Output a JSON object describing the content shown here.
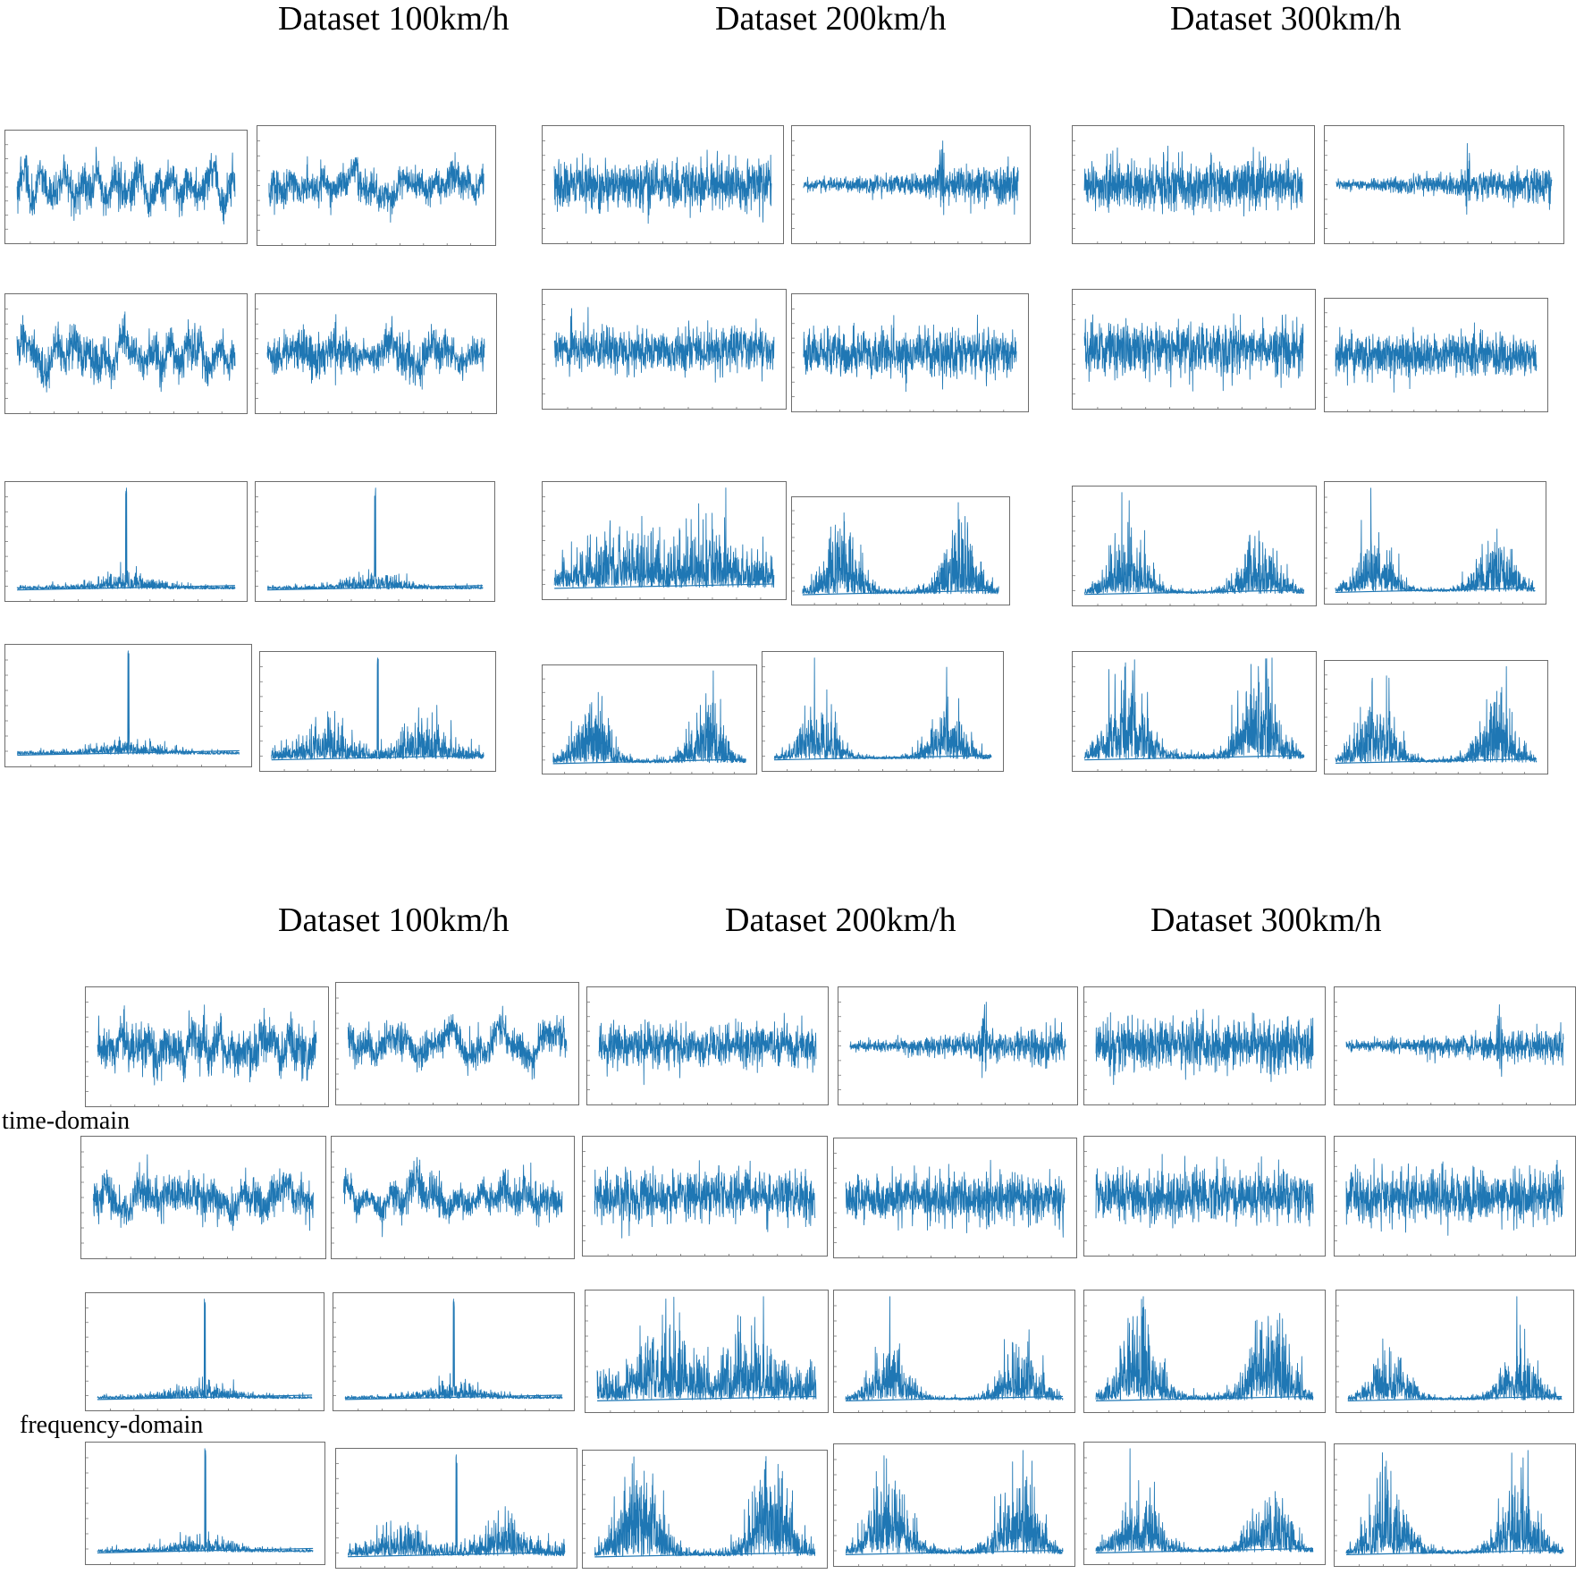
{
  "chart_data": [
    {
      "type": "line",
      "figure": "top",
      "column_titles": [
        "Dataset 100km/h",
        "Dataset 200km/h",
        "Dataset 300km/h"
      ],
      "row_labels": [],
      "line_color": "#1f77b4",
      "panels": [
        {
          "row": 0,
          "col": 0,
          "domain": "time",
          "kind": "lowfreq",
          "seed": 11,
          "amp": 0.8
        },
        {
          "row": 0,
          "col": 1,
          "domain": "time",
          "kind": "lowfreq",
          "seed": 12,
          "amp": 0.7
        },
        {
          "row": 0,
          "col": 2,
          "domain": "time",
          "kind": "noise",
          "seed": 13,
          "amp": 0.75
        },
        {
          "row": 0,
          "col": 3,
          "domain": "time",
          "kind": "narrow",
          "seed": 14,
          "amp": 0.85
        },
        {
          "row": 0,
          "col": 4,
          "domain": "time",
          "kind": "noise",
          "seed": 15,
          "amp": 0.75
        },
        {
          "row": 0,
          "col": 5,
          "domain": "time",
          "kind": "narrow",
          "seed": 16,
          "amp": 0.8
        },
        {
          "row": 1,
          "col": 0,
          "domain": "time",
          "kind": "lowfreq",
          "seed": 21,
          "amp": 0.8
        },
        {
          "row": 1,
          "col": 1,
          "domain": "time",
          "kind": "midlow",
          "seed": 22,
          "amp": 0.75
        },
        {
          "row": 1,
          "col": 2,
          "domain": "time",
          "kind": "noise",
          "seed": 23,
          "amp": 0.8
        },
        {
          "row": 1,
          "col": 3,
          "domain": "time",
          "kind": "noise",
          "seed": 24,
          "amp": 0.75
        },
        {
          "row": 1,
          "col": 4,
          "domain": "time",
          "kind": "noise",
          "seed": 25,
          "amp": 0.8
        },
        {
          "row": 1,
          "col": 5,
          "domain": "time",
          "kind": "noise",
          "seed": 26,
          "amp": 0.75
        },
        {
          "row": 2,
          "col": 0,
          "domain": "frequency",
          "kind": "spike",
          "seed": 31,
          "amp": 1
        },
        {
          "row": 2,
          "col": 1,
          "domain": "frequency",
          "kind": "spike",
          "seed": 32,
          "amp": 1
        },
        {
          "row": 2,
          "col": 2,
          "domain": "frequency",
          "kind": "broad",
          "seed": 33,
          "amp": 1
        },
        {
          "row": 2,
          "col": 3,
          "domain": "frequency",
          "kind": "bimodal",
          "seed": 34,
          "amp": 1
        },
        {
          "row": 2,
          "col": 4,
          "domain": "frequency",
          "kind": "bimodal",
          "seed": 35,
          "amp": 1
        },
        {
          "row": 2,
          "col": 5,
          "domain": "frequency",
          "kind": "bimodal",
          "seed": 36,
          "amp": 1
        },
        {
          "row": 3,
          "col": 0,
          "domain": "frequency",
          "kind": "spike",
          "seed": 41,
          "amp": 1
        },
        {
          "row": 3,
          "col": 1,
          "domain": "frequency",
          "kind": "spikebroad",
          "seed": 42,
          "amp": 1
        },
        {
          "row": 3,
          "col": 2,
          "domain": "frequency",
          "kind": "bimodal",
          "seed": 43,
          "amp": 1
        },
        {
          "row": 3,
          "col": 3,
          "domain": "frequency",
          "kind": "bimodal",
          "seed": 44,
          "amp": 1
        },
        {
          "row": 3,
          "col": 4,
          "domain": "frequency",
          "kind": "bimodal",
          "seed": 45,
          "amp": 1
        },
        {
          "row": 3,
          "col": 5,
          "domain": "frequency",
          "kind": "bimodal",
          "seed": 46,
          "amp": 1
        }
      ]
    },
    {
      "type": "line",
      "figure": "bottom",
      "column_titles": [
        "Dataset 100km/h",
        "Dataset 200km/h",
        "Dataset 300km/h"
      ],
      "row_labels": [
        "time-domain",
        "frequency-domain"
      ],
      "line_color": "#1f77b4",
      "panels": [
        {
          "row": 0,
          "col": 0,
          "domain": "time",
          "kind": "lowfreq",
          "seed": 51,
          "amp": 0.8
        },
        {
          "row": 0,
          "col": 1,
          "domain": "time",
          "kind": "lowfreq",
          "seed": 52,
          "amp": 0.7
        },
        {
          "row": 0,
          "col": 2,
          "domain": "time",
          "kind": "noise",
          "seed": 53,
          "amp": 0.75
        },
        {
          "row": 0,
          "col": 3,
          "domain": "time",
          "kind": "narrow",
          "seed": 54,
          "amp": 0.85
        },
        {
          "row": 0,
          "col": 4,
          "domain": "time",
          "kind": "noise",
          "seed": 55,
          "amp": 0.75
        },
        {
          "row": 0,
          "col": 5,
          "domain": "time",
          "kind": "narrow",
          "seed": 56,
          "amp": 0.8
        },
        {
          "row": 1,
          "col": 0,
          "domain": "time",
          "kind": "lowfreq",
          "seed": 61,
          "amp": 0.8
        },
        {
          "row": 1,
          "col": 1,
          "domain": "time",
          "kind": "midlow",
          "seed": 62,
          "amp": 0.75
        },
        {
          "row": 1,
          "col": 2,
          "domain": "time",
          "kind": "noise",
          "seed": 63,
          "amp": 0.8
        },
        {
          "row": 1,
          "col": 3,
          "domain": "time",
          "kind": "noise",
          "seed": 64,
          "amp": 0.75
        },
        {
          "row": 1,
          "col": 4,
          "domain": "time",
          "kind": "noise",
          "seed": 65,
          "amp": 0.8
        },
        {
          "row": 1,
          "col": 5,
          "domain": "time",
          "kind": "noise",
          "seed": 66,
          "amp": 0.75
        },
        {
          "row": 2,
          "col": 0,
          "domain": "frequency",
          "kind": "spike",
          "seed": 71,
          "amp": 1
        },
        {
          "row": 2,
          "col": 1,
          "domain": "frequency",
          "kind": "spike",
          "seed": 72,
          "amp": 1
        },
        {
          "row": 2,
          "col": 2,
          "domain": "frequency",
          "kind": "broad",
          "seed": 73,
          "amp": 1
        },
        {
          "row": 2,
          "col": 3,
          "domain": "frequency",
          "kind": "bimodal",
          "seed": 74,
          "amp": 1
        },
        {
          "row": 2,
          "col": 4,
          "domain": "frequency",
          "kind": "bimodal",
          "seed": 75,
          "amp": 1
        },
        {
          "row": 2,
          "col": 5,
          "domain": "frequency",
          "kind": "bimodal",
          "seed": 76,
          "amp": 1
        },
        {
          "row": 3,
          "col": 0,
          "domain": "frequency",
          "kind": "spike",
          "seed": 81,
          "amp": 1
        },
        {
          "row": 3,
          "col": 1,
          "domain": "frequency",
          "kind": "spikebroad",
          "seed": 82,
          "amp": 1
        },
        {
          "row": 3,
          "col": 2,
          "domain": "frequency",
          "kind": "bimodal",
          "seed": 83,
          "amp": 1
        },
        {
          "row": 3,
          "col": 3,
          "domain": "frequency",
          "kind": "bimodal",
          "seed": 84,
          "amp": 1
        },
        {
          "row": 3,
          "col": 4,
          "domain": "frequency",
          "kind": "bimodal",
          "seed": 85,
          "amp": 1
        },
        {
          "row": 3,
          "col": 5,
          "domain": "frequency",
          "kind": "bimodal",
          "seed": 86,
          "amp": 1
        }
      ]
    }
  ]
}
